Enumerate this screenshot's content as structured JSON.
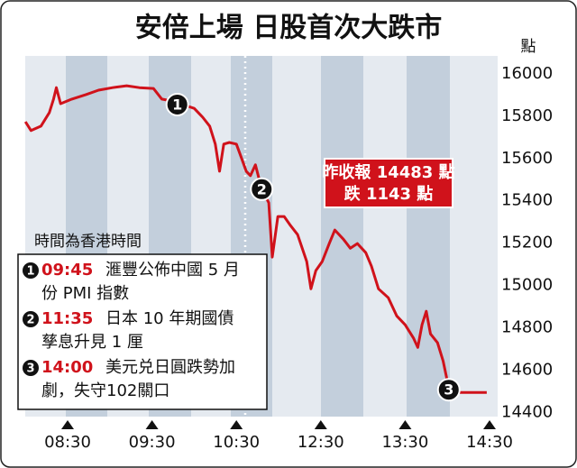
{
  "chart_data": {
    "type": "line",
    "title": "安倍上場 日股首次大跌市",
    "y_unit": "點",
    "note": "時間為香港時間",
    "close_box": [
      "昨收報 14483 點",
      "跌 1143 點"
    ],
    "color": "#d0121b",
    "x": [
      "08:00",
      "08:04",
      "08:11",
      "08:17",
      "08:20",
      "08:22",
      "08:25",
      "08:33",
      "08:43",
      "08:52",
      "09:02",
      "09:12",
      "09:21",
      "09:31",
      "09:37",
      "09:44",
      "09:50",
      "10:00",
      "10:06",
      "10:11",
      "10:15",
      "10:18",
      "10:21",
      "10:25",
      "10:30",
      "10:37",
      "10:44",
      "10:50",
      "10:57",
      "11:06",
      "11:16",
      "11:21",
      "11:29",
      "11:38",
      "11:47",
      "11:57",
      "12:10",
      "12:16",
      "12:23",
      "12:31",
      "12:36",
      "12:40",
      "12:46",
      "12:51",
      "12:56",
      "13:02",
      "13:06",
      "13:11",
      "13:18",
      "13:24",
      "13:30",
      "13:36",
      "13:39",
      "13:42",
      "13:45",
      "13:48",
      "13:53",
      "13:57",
      "14:01",
      "14:06",
      "14:28"
    ],
    "values": [
      15774,
      15732,
      15753,
      15817,
      15881,
      15935,
      15859,
      15881,
      15902,
      15923,
      15935,
      15944,
      15935,
      15931,
      15881,
      15872,
      15859,
      15837,
      15795,
      15753,
      15668,
      15540,
      15668,
      15676,
      15668,
      15604,
      15540,
      15519,
      15570,
      15455,
      15391,
      15134,
      15326,
      15326,
      15283,
      15240,
      15113,
      14984,
      15070,
      15113,
      15198,
      15262,
      15219,
      15176,
      15198,
      15155,
      15091,
      14984,
      14942,
      14856,
      14814,
      14750,
      14707,
      14814,
      14878,
      14771,
      14729,
      14643,
      14515,
      14494,
      14494
    ],
    "ylim": [
      14380,
      16085
    ],
    "yticks": [
      14400,
      14600,
      14800,
      15000,
      15200,
      15400,
      15600,
      15800,
      16000
    ],
    "xlim": [
      "08:00",
      "14:36"
    ],
    "xticks": [
      "08:30",
      "09:30",
      "10:30",
      "12:30",
      "13:30",
      "14:30"
    ],
    "markers": [
      {
        "label": "1",
        "x": "09:48",
        "value": 15855
      },
      {
        "label": "2",
        "x": "11:06",
        "value": 15455
      },
      {
        "label": "3",
        "x": "14:01",
        "value": 14507
      }
    ],
    "events": [
      {
        "num": "1",
        "time": "09:45",
        "lines": [
          "滙豐公佈中國 5 月",
          "份 PMI 指數"
        ]
      },
      {
        "num": "2",
        "time": "11:35",
        "lines": [
          "日本 10 年期國債",
          "孳息升見 1 厘"
        ]
      },
      {
        "num": "3",
        "time": "14:00",
        "lines": [
          "美元兑日圓跌勢加",
          "劇，失守102關口"
        ]
      }
    ]
  }
}
